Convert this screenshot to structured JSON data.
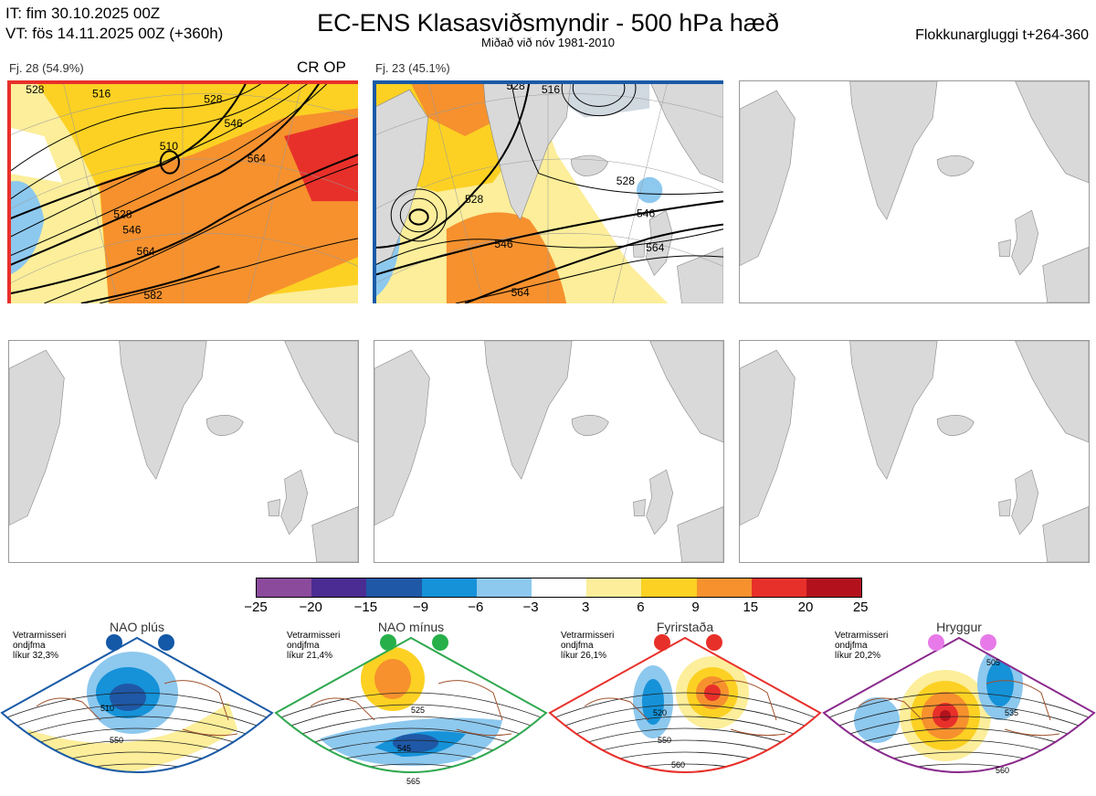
{
  "header": {
    "it_line": "IT: fim 30.10.2025 00Z",
    "vt_line": "VT: fös 14.11.2025 00Z  (+360h)",
    "title": "EC-ENS Klasasviðsmyndir - 500 hPa hæð",
    "subtitle": "Miðað við nóv 1981-2010",
    "window": "Flokkunargluggi t+264-360"
  },
  "clusters": [
    {
      "label": "Fj. 28 (54.9%)",
      "tag": "CR OP",
      "border_color": "#e8302a",
      "contour_labels": [
        "528",
        "516",
        "528",
        "546",
        "510",
        "564",
        "528",
        "546",
        "564",
        "582"
      ]
    },
    {
      "label": "Fj. 23 (45.1%)",
      "tag": "",
      "border_color": "#1a5aa6",
      "contour_labels": [
        "528",
        "516",
        "528",
        "528",
        "546",
        "546",
        "564",
        "564"
      ]
    }
  ],
  "colorbar": {
    "ticks": [
      "−25",
      "−20",
      "−15",
      "−9",
      "−6",
      "−3",
      "3",
      "6",
      "9",
      "15",
      "20",
      "25"
    ],
    "colors": [
      "#8b4a9c",
      "#4b2c92",
      "#1f58a6",
      "#1592d8",
      "#8dc8ee",
      "#ffffff",
      "#fcee9a",
      "#fcd123",
      "#f6912e",
      "#e8302a",
      "#b3121c"
    ]
  },
  "regimes": [
    {
      "name": "NAO plús",
      "season": "Vetrarmisseri",
      "month": "ondjfma",
      "prob": "líkur 32,3%",
      "color": "#1a5aa6",
      "dot_color": "#1458a8",
      "contour_labels": [
        "510",
        "550"
      ]
    },
    {
      "name": "NAO mínus",
      "season": "Vetrarmisseri",
      "month": "ondjfma",
      "prob": "líkur 21,4%",
      "color": "#2fa84f",
      "dot_color": "#27b04a",
      "contour_labels": [
        "525",
        "545",
        "565"
      ]
    },
    {
      "name": "Fyrirstaða",
      "season": "Vetrarmisseri",
      "month": "ondjfma",
      "prob": "líkur 26,1%",
      "color": "#e8302a",
      "dot_color": "#e8302a",
      "contour_labels": [
        "520",
        "550",
        "560"
      ]
    },
    {
      "name": "Hryggur",
      "season": "Vetrarmisseri",
      "month": "ondjfma",
      "prob": "líkur 20,2%",
      "color": "#8a2a8c",
      "dot_color": "#e77ae8",
      "contour_labels": [
        "505",
        "535",
        "560"
      ]
    }
  ]
}
